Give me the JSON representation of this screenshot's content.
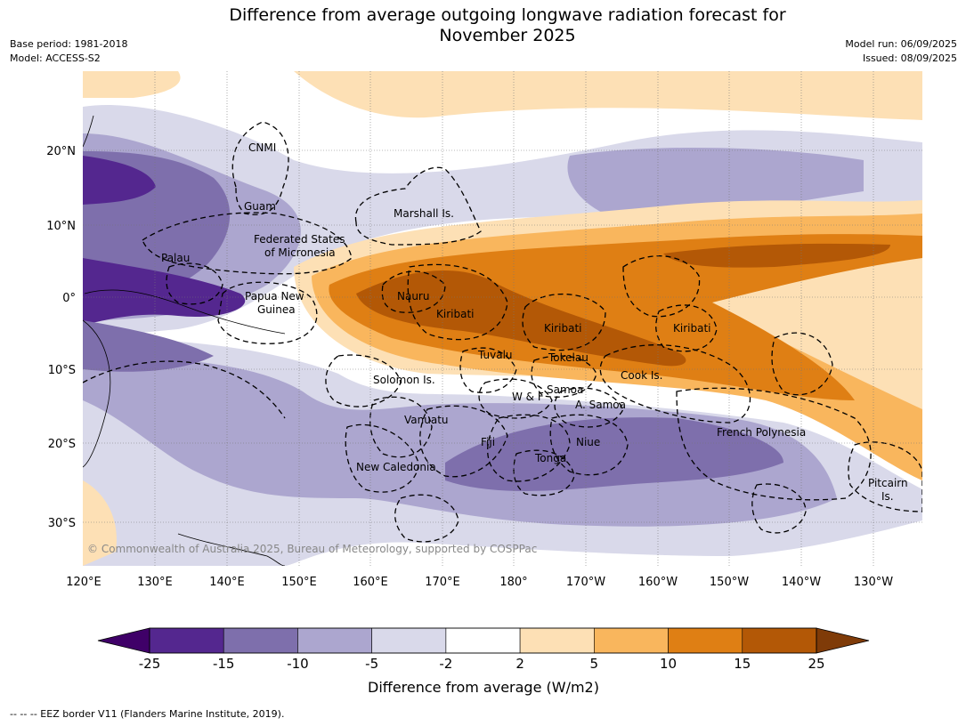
{
  "header": {
    "title_line1": "Difference from average outgoing longwave radiation forecast for",
    "title_line2": "November 2025",
    "base_period": "Base period: 1981-2018",
    "model": "Model: ACCESS-S2",
    "model_run": "Model run: 06/09/2025",
    "issued": "Issued: 08/09/2025"
  },
  "map": {
    "lat_labels": [
      "20°N",
      "10°N",
      "0°",
      "10°S",
      "20°S",
      "30°S"
    ],
    "lon_labels": [
      "120°E",
      "130°E",
      "140°E",
      "150°E",
      "160°E",
      "170°E",
      "180°",
      "170°W",
      "160°W",
      "150°W",
      "140°W",
      "130°W"
    ],
    "places": [
      "CNMI",
      "Guam",
      "Marshall Is.",
      "Federated States",
      "of Micronesia",
      "Palau",
      "Papua New",
      "Guinea",
      "Nauru",
      "Kiribati",
      "Kiribati",
      "Kiribati",
      "Tuvalu",
      "Tokelau",
      "Cook Is.",
      "Solomon Is.",
      "W & F",
      "Samoa",
      "A. Samoa",
      "Vanuatu",
      "Fiji",
      "Niue",
      "Tonga",
      "French Polynesia",
      "New Caledonia",
      "Pitcairn",
      "Is."
    ],
    "copyright": "© Commonwealth of Australia 2025, Bureau of Meteorology, supported by COSPPac",
    "anomaly_colors": {
      "lt_-25": "#3f0068",
      "-25_-15": "#54278f",
      "-15_-10": "#7e6fac",
      "-10_-5": "#aca6cf",
      "-5_-2": "#d9d9ea",
      "-2_2": "#ffffff",
      "2_5": "#fde0b5",
      "5_10": "#f9b65d",
      "10_15": "#df7f14",
      "15_25": "#b35806",
      "gt_25": "#7f3b08"
    }
  },
  "colorbar": {
    "ticks": [
      "-25",
      "-15",
      "-10",
      "-5",
      "-2",
      "2",
      "5",
      "10",
      "15",
      "25"
    ],
    "label": "Difference from average (W/m2)",
    "colors": [
      "#54278f",
      "#7e6fac",
      "#aca6cf",
      "#d9d9ea",
      "#ffffff",
      "#fde0b5",
      "#f9b65d",
      "#df7f14",
      "#b35806"
    ],
    "low_extend_color": "#3f0068",
    "high_extend_color": "#7f3b08"
  },
  "footer": {
    "note": "--  --  -- EEZ border V11 (Flanders Marine Institute, 2019)."
  }
}
